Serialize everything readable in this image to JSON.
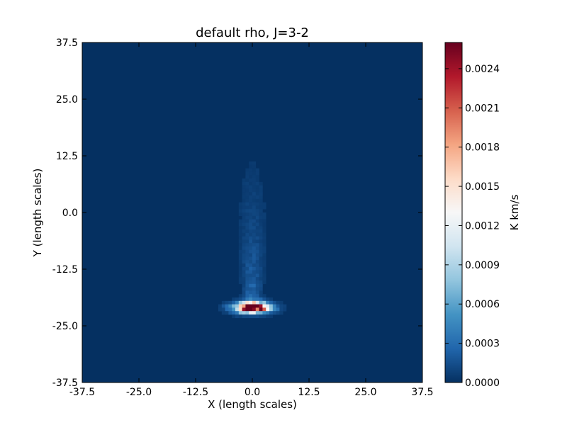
{
  "chart_data": {
    "type": "heatmap",
    "title": "default rho, J=3-2",
    "xlabel": "X (length scales)",
    "ylabel": "Y (length scales)",
    "xlim": [
      -37.5,
      37.5
    ],
    "ylim": [
      -37.5,
      37.5
    ],
    "x_ticks": [
      "-37.5",
      "-25.0",
      "-12.5",
      "0.0",
      "12.5",
      "25.0",
      "37.5"
    ],
    "y_ticks": [
      "37.5",
      "25.0",
      "12.5",
      "0.0",
      "-12.5",
      "-25.0",
      "-37.5"
    ],
    "grid": false,
    "colormap": "RdBu_r",
    "colorbar": {
      "label": "K km/s",
      "range": [
        0.0,
        0.0026
      ],
      "ticks": [
        "0.0000",
        "0.0003",
        "0.0006",
        "0.0009",
        "0.0012",
        "0.0015",
        "0.0018",
        "0.0021",
        "0.0024"
      ]
    },
    "background_value": 0.0,
    "features": [
      {
        "x": 0.0,
        "y": -21.0,
        "peak": 0.0025
      },
      {
        "x": 0.0,
        "y": -12.0,
        "peak": 0.0003
      }
    ]
  }
}
